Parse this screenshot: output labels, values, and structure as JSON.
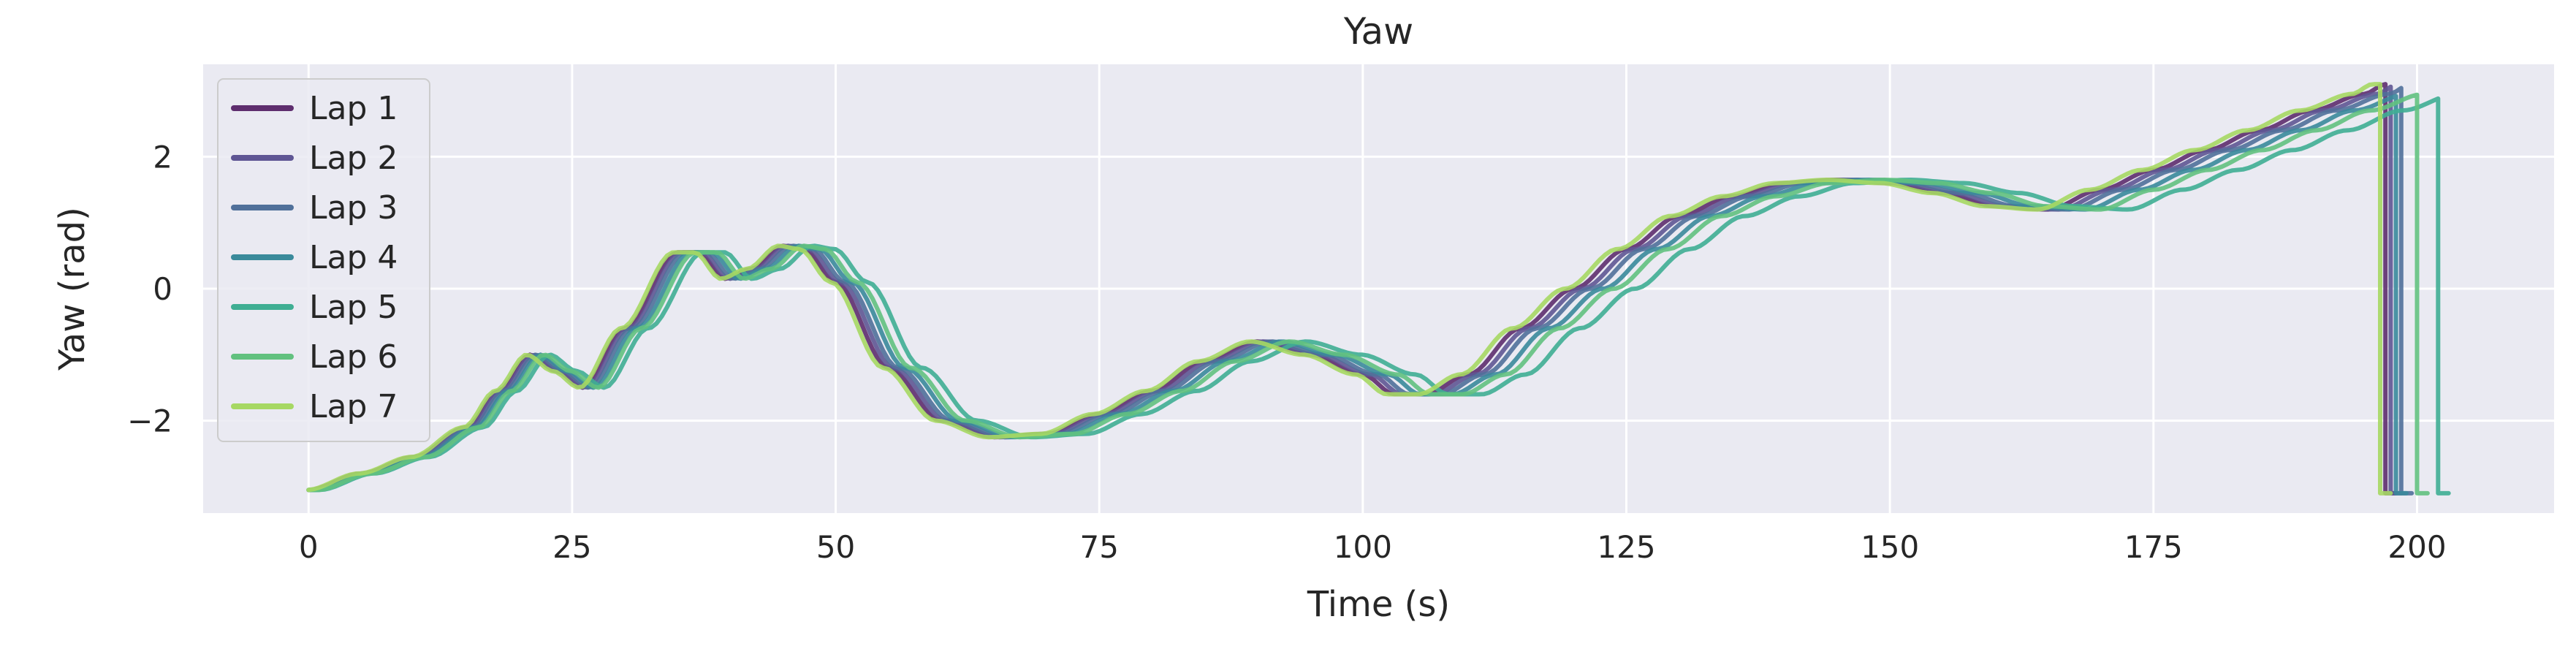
{
  "chart_data": {
    "type": "line",
    "title": "Yaw",
    "xlabel": "Time (s)",
    "ylabel": "Yaw (rad)",
    "xlim": [
      -10,
      213
    ],
    "ylim": [
      -3.4,
      3.4
    ],
    "xticks": [
      0,
      25,
      50,
      75,
      100,
      125,
      150,
      175,
      200
    ],
    "yticks": [
      -2,
      0,
      2
    ],
    "ytick_labels": [
      "−2",
      "0",
      "2"
    ],
    "grid": true,
    "legend_position": "upper-left",
    "background": "#eaeaf2",
    "series": [
      {
        "name": "Lap 1",
        "color": "#5e2d6e",
        "time_scale": 1.0,
        "time_offset": 0.0,
        "end": 197.0
      },
      {
        "name": "Lap 2",
        "color": "#5f5694",
        "time_scale": 1.005,
        "time_offset": 0.2,
        "end": 197.5
      },
      {
        "name": "Lap 3",
        "color": "#50709a",
        "time_scale": 1.01,
        "time_offset": 0.4,
        "end": 198.5
      },
      {
        "name": "Lap 4",
        "color": "#3a8a9b",
        "time_scale": 1.018,
        "time_offset": 0.6,
        "end": 198.0
      },
      {
        "name": "Lap 5",
        "color": "#3fae93",
        "time_scale": 1.04,
        "time_offset": 1.0,
        "end": 202.0
      },
      {
        "name": "Lap 6",
        "color": "#62c17f",
        "time_scale": 1.025,
        "time_offset": 0.8,
        "end": 200.0
      },
      {
        "name": "Lap 7",
        "color": "#a6d863",
        "time_scale": 0.995,
        "time_offset": -0.2,
        "end": 196.5
      }
    ],
    "base_profile": {
      "t": [
        0,
        5,
        10,
        15,
        18,
        21,
        23.5,
        26,
        30,
        35,
        37,
        39.5,
        42,
        45,
        47,
        50,
        55,
        60,
        65,
        70,
        75,
        80,
        85,
        90,
        95,
        100,
        103,
        106,
        110,
        115,
        120,
        125,
        130,
        135,
        140,
        145,
        150,
        155,
        160,
        165,
        170,
        175,
        180,
        185,
        190,
        195,
        197
      ],
      "yaw": [
        -3.05,
        -2.8,
        -2.55,
        -2.1,
        -1.55,
        -1.0,
        -1.25,
        -1.5,
        -0.6,
        0.55,
        0.55,
        0.15,
        0.3,
        0.65,
        0.6,
        0.1,
        -1.2,
        -2.0,
        -2.25,
        -2.2,
        -1.9,
        -1.55,
        -1.1,
        -0.8,
        -1.0,
        -1.3,
        -1.6,
        -1.6,
        -1.3,
        -0.6,
        0.0,
        0.6,
        1.1,
        1.4,
        1.6,
        1.65,
        1.6,
        1.45,
        1.25,
        1.2,
        1.5,
        1.8,
        2.1,
        2.4,
        2.7,
        2.95,
        3.1
      ]
    },
    "wrap_value": -3.1
  }
}
